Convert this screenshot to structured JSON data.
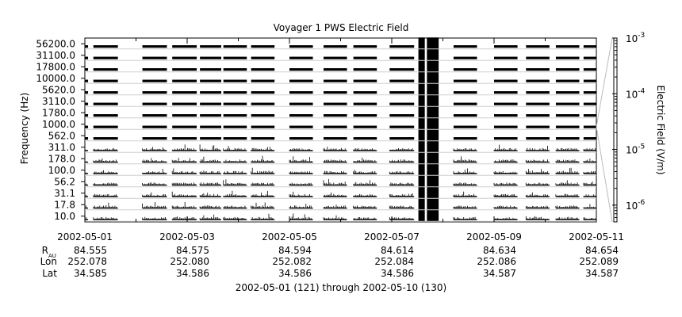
{
  "chart_data": {
    "type": "line",
    "title": "Voyager 1 PWS Electric Field",
    "ylabel": "Frequency (Hz)",
    "y2label": "Electric Field (V/m)",
    "y2_scale": "log",
    "y2lim": [
      5e-07,
      0.001
    ],
    "y2_ticks": [
      {
        "value": 0.001,
        "mantissa": "10",
        "exp": "-3"
      },
      {
        "value": 0.0001,
        "mantissa": "10",
        "exp": "-4"
      },
      {
        "value": 1e-05,
        "mantissa": "10",
        "exp": "-5"
      },
      {
        "value": 1e-06,
        "mantissa": "10",
        "exp": "-6"
      }
    ],
    "channels": [
      "56200.0",
      "31100.0",
      "17800.0",
      "10000.0",
      "5620.0",
      "3110.0",
      "1780.0",
      "1000.0",
      "562.0",
      "311.0",
      "178.0",
      "100.0",
      "56.2",
      "31.1",
      "17.8",
      "10.0"
    ],
    "xlim": [
      "2002-05-01",
      "2002-05-11"
    ],
    "x_ticks": [
      "2002-05-01",
      "2002-05-03",
      "2002-05-05",
      "2002-05-07",
      "2002-05-09",
      "2002-05-11"
    ],
    "data_segments": [
      [
        "2002-05-01 00:00",
        "2002-05-01 01:30"
      ],
      [
        "2002-05-01 04:00",
        "2002-05-01 15:30"
      ],
      [
        "2002-05-02 03:00",
        "2002-05-02 14:30"
      ],
      [
        "2002-05-02 17:00",
        "2002-05-03 04:30"
      ],
      [
        "2002-05-03 06:00",
        "2002-05-03 16:00"
      ],
      [
        "2002-05-03 17:00",
        "2002-05-04 04:00"
      ],
      [
        "2002-05-04 06:00",
        "2002-05-04 17:00"
      ],
      [
        "2002-05-05 00:00",
        "2002-05-05 11:00"
      ],
      [
        "2002-05-05 16:00",
        "2002-05-06 03:00"
      ],
      [
        "2002-05-06 06:00",
        "2002-05-06 17:00"
      ],
      [
        "2002-05-06 23:00",
        "2002-05-07 10:30"
      ],
      [
        "2002-05-07 12:30",
        "2002-05-07 15:30"
      ],
      [
        "2002-05-07 16:30",
        "2002-05-07 22:00"
      ],
      [
        "2002-05-08 05:00",
        "2002-05-08 16:00"
      ],
      [
        "2002-05-09 00:00",
        "2002-05-09 11:00"
      ],
      [
        "2002-05-09 15:00",
        "2002-05-10 02:00"
      ],
      [
        "2002-05-10 05:00",
        "2002-05-10 16:00"
      ],
      [
        "2002-05-10 18:00",
        "2002-05-11 00:00"
      ]
    ],
    "ephemeris": {
      "labels": [
        "R",
        "Lon",
        "Lat"
      ],
      "r_subscript": "AU",
      "rows": [
        [
          "84.555",
          "84.575",
          "84.594",
          "84.614",
          "84.634",
          "84.654"
        ],
        [
          "252.078",
          "252.080",
          "252.082",
          "252.084",
          "252.086",
          "252.089"
        ],
        [
          "34.585",
          "34.586",
          "34.586",
          "34.586",
          "34.587",
          "34.587"
        ]
      ]
    },
    "footer": "2002-05-01 (121) through 2002-05-10 (130)"
  }
}
